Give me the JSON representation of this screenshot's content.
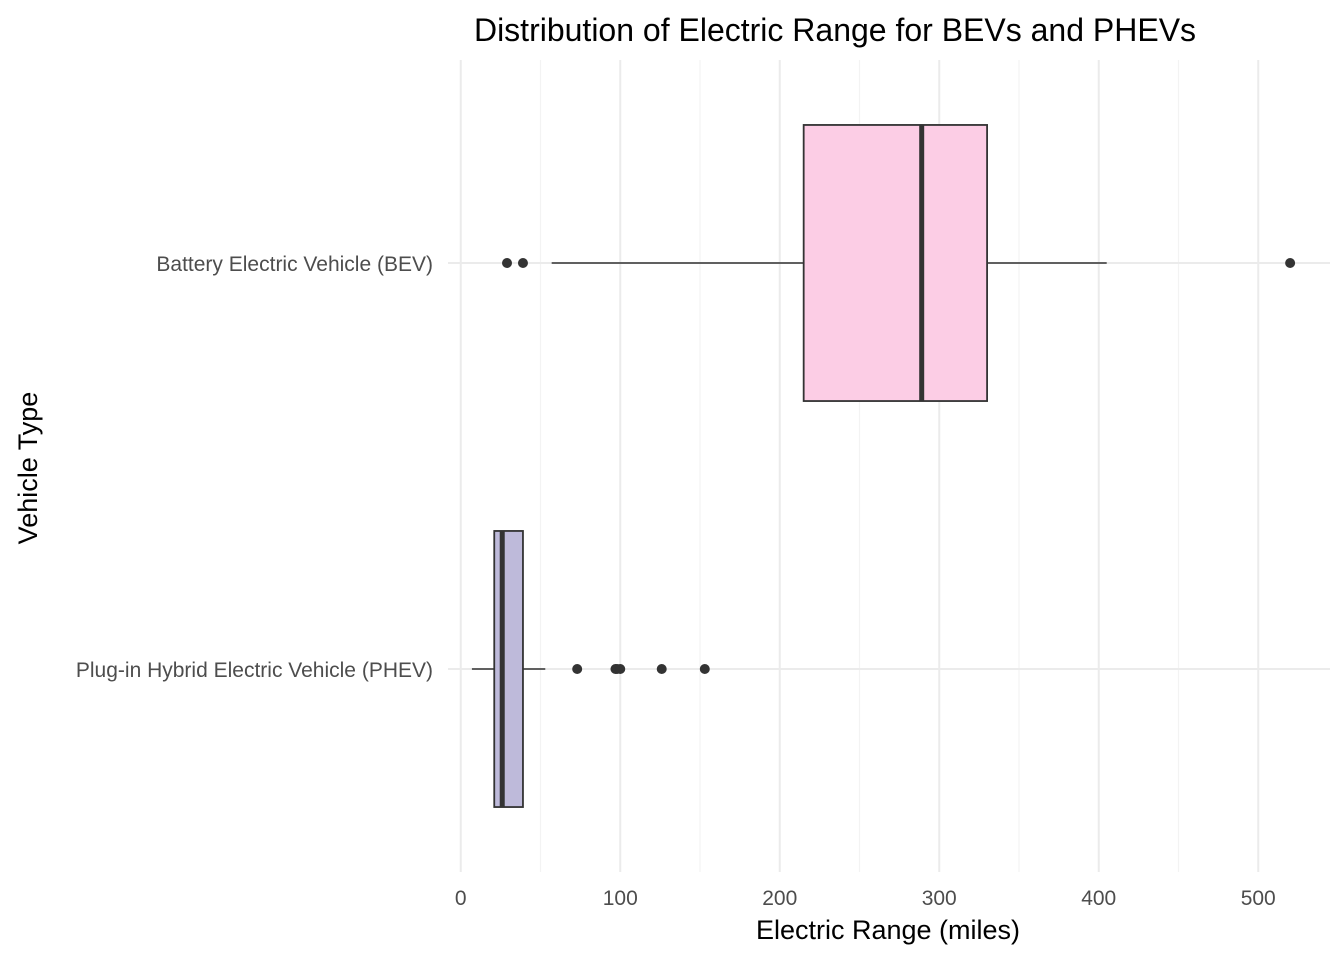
{
  "chart_data": {
    "type": "boxplot",
    "orientation": "horizontal",
    "title": "Distribution of Electric Range for BEVs and PHEVs",
    "xlabel": "Electric Range (miles)",
    "ylabel": "Vehicle Type",
    "xlim": [
      -8,
      545
    ],
    "x_ticks": [
      0,
      100,
      200,
      300,
      400,
      500
    ],
    "x_minor_ticks": [
      50,
      150,
      250,
      350,
      450
    ],
    "grid": true,
    "legend": "none",
    "categories": [
      "Battery Electric Vehicle (BEV)",
      "Plug-in Hybrid Electric Vehicle (PHEV)"
    ],
    "series": [
      {
        "category": "Battery Electric Vehicle (BEV)",
        "whisker_low": 57,
        "q1": 215,
        "median": 289,
        "q3": 330,
        "whisker_high": 405,
        "outliers": [
          29,
          39,
          520
        ],
        "fill": "#fccde5"
      },
      {
        "category": "Plug-in Hybrid Electric Vehicle (PHEV)",
        "whisker_low": 7,
        "q1": 21,
        "median": 26,
        "q3": 39,
        "whisker_high": 53,
        "outliers": [
          73,
          97,
          98,
          100,
          126,
          153
        ],
        "fill": "#bebada"
      }
    ]
  }
}
